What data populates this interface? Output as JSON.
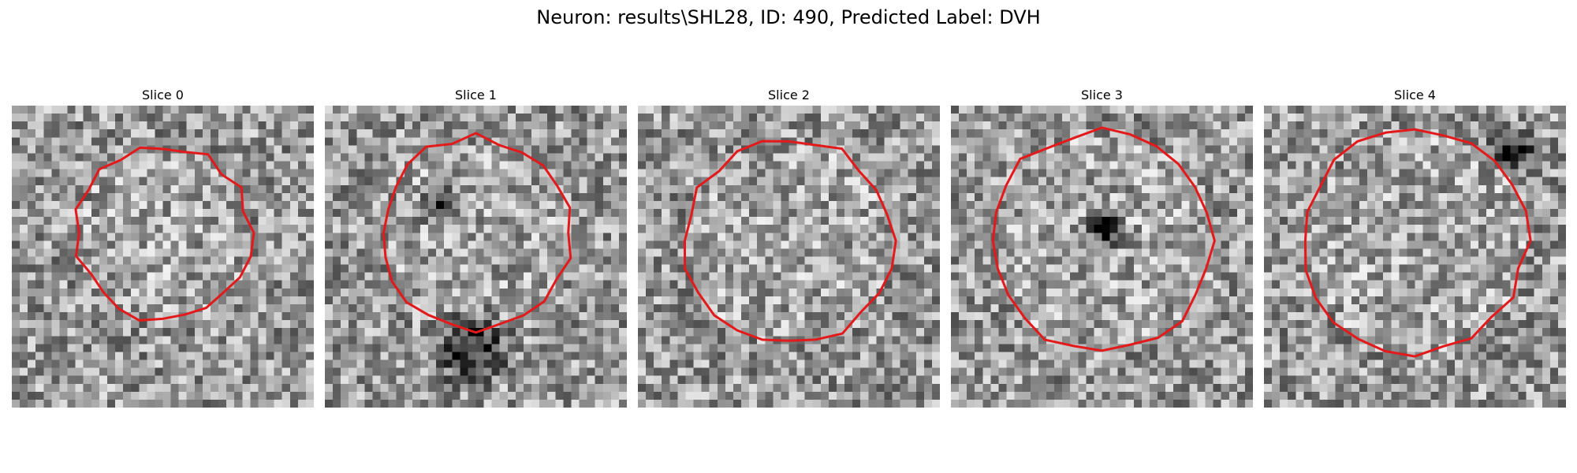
{
  "figure": {
    "title": "Neuron: results\\SHL28, ID: 490, Predicted Label: DVH"
  },
  "panels": [
    {
      "title": "Slice 0",
      "seed": 11,
      "ring": {
        "cx": 19,
        "cy": 16,
        "r": 11
      },
      "blobs": []
    },
    {
      "title": "Slice 1",
      "seed": 23,
      "ring": {
        "cx": 19,
        "cy": 16,
        "r": 12
      },
      "blobs": [
        {
          "cx": 14,
          "cy": 12,
          "r": 4,
          "dark": 0.35
        },
        {
          "cx": 18,
          "cy": 30,
          "r": 6,
          "dark": 0.55
        }
      ]
    },
    {
      "title": "Slice 2",
      "seed": 37,
      "ring": {
        "cx": 19,
        "cy": 17,
        "r": 13
      },
      "blobs": []
    },
    {
      "title": "Slice 3",
      "seed": 41,
      "ring": {
        "cx": 19,
        "cy": 17,
        "r": 14
      },
      "blobs": [
        {
          "cx": 19,
          "cy": 15,
          "r": 3,
          "dark": 0.7
        }
      ]
    },
    {
      "title": "Slice 4",
      "seed": 53,
      "ring": {
        "cx": 19,
        "cy": 17,
        "r": 14
      },
      "blobs": [
        {
          "cx": 31,
          "cy": 5,
          "r": 4,
          "dark": 0.5
        }
      ]
    }
  ],
  "colors": {
    "contour": "#e31a1c"
  }
}
